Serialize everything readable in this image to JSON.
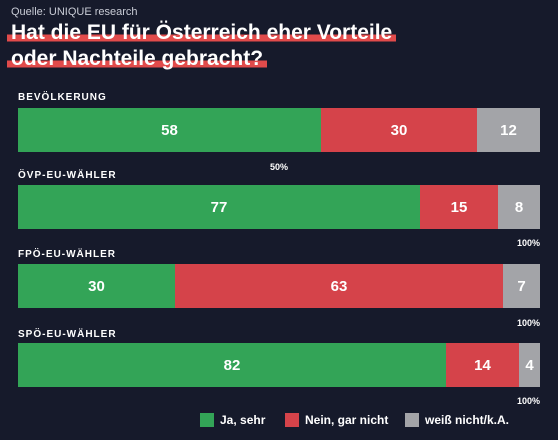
{
  "source": "Quelle: UNIQUE research",
  "title_line1": "Hat die EU für Österreich eher Vorteile",
  "title_line2": "oder Nachteile gebracht?",
  "colors": {
    "ja": "#33a457",
    "nein": "#d5434a",
    "weiss": "#a3a4a8",
    "background": "#161a2b",
    "title_highlight": "#e14b4b"
  },
  "chart_data": {
    "type": "bar",
    "orientation": "horizontal-stacked",
    "unit": "%",
    "series_names": [
      "Ja, sehr",
      "Nein, gar nicht",
      "weiß nicht/k.A."
    ],
    "groups": [
      {
        "label": "BEVÖLKERUNG",
        "values": [
          58,
          30,
          12
        ],
        "scale_label": "50%",
        "scale_value": 50
      },
      {
        "label": "ÖVP-EU-WÄHLER",
        "values": [
          77,
          15,
          8
        ],
        "scale_label": "100%",
        "scale_value": 100
      },
      {
        "label": "FPÖ-EU-WÄHLER",
        "values": [
          30,
          63,
          7
        ],
        "scale_label": "100%",
        "scale_value": 100
      },
      {
        "label": "SPÖ-EU-WÄHLER",
        "values": [
          82,
          14,
          4
        ],
        "scale_label": "100%",
        "scale_value": 100
      }
    ]
  },
  "legend": [
    {
      "label": "Ja, sehr",
      "color_key": "ja"
    },
    {
      "label": "Nein, gar nicht",
      "color_key": "nein"
    },
    {
      "label": "weiß nicht/k.A.",
      "color_key": "weiss"
    }
  ]
}
